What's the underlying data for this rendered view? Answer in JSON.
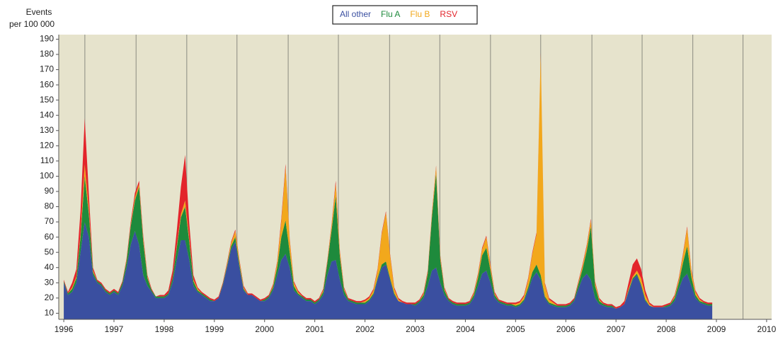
{
  "chart_data": {
    "type": "stacked_area",
    "y_label": [
      "Events",
      "per 100 000"
    ],
    "legend": "top",
    "background": "#e6e3cc",
    "xlim": [
      1995.9,
      2010.1
    ],
    "xticks": [
      1996,
      1997,
      1998,
      1999,
      2000,
      2001,
      2002,
      2003,
      2004,
      2005,
      2006,
      2007,
      2008,
      2009,
      2010
    ],
    "xgrid": [
      1996.42,
      1997.44,
      1998.45,
      1999.45,
      2000.47,
      2001.47,
      2002.49,
      2003.49,
      2004.5,
      2005.5,
      2006.52,
      2007.52,
      2008.53,
      2009.53
    ],
    "ylim": [
      6,
      193
    ],
    "yticks": [
      10,
      20,
      30,
      40,
      50,
      60,
      70,
      80,
      90,
      100,
      110,
      120,
      130,
      140,
      150,
      160,
      170,
      180,
      190
    ],
    "x": [
      1996.0,
      1996.083,
      1996.167,
      1996.25,
      1996.333,
      1996.417,
      1996.5,
      1996.583,
      1996.667,
      1996.75,
      1996.833,
      1996.917,
      1997.0,
      1997.083,
      1997.167,
      1997.25,
      1997.333,
      1997.417,
      1997.5,
      1997.583,
      1997.667,
      1997.75,
      1997.833,
      1997.917,
      1998.0,
      1998.083,
      1998.167,
      1998.25,
      1998.333,
      1998.417,
      1998.5,
      1998.583,
      1998.667,
      1998.75,
      1998.833,
      1998.917,
      1999.0,
      1999.083,
      1999.167,
      1999.25,
      1999.333,
      1999.417,
      1999.5,
      1999.583,
      1999.667,
      1999.75,
      1999.833,
      1999.917,
      2000.0,
      2000.083,
      2000.167,
      2000.25,
      2000.333,
      2000.417,
      2000.5,
      2000.583,
      2000.667,
      2000.75,
      2000.833,
      2000.917,
      2001.0,
      2001.083,
      2001.167,
      2001.25,
      2001.333,
      2001.417,
      2001.5,
      2001.583,
      2001.667,
      2001.75,
      2001.833,
      2001.917,
      2002.0,
      2002.083,
      2002.167,
      2002.25,
      2002.333,
      2002.417,
      2002.5,
      2002.583,
      2002.667,
      2002.75,
      2002.833,
      2002.917,
      2003.0,
      2003.083,
      2003.167,
      2003.25,
      2003.333,
      2003.417,
      2003.5,
      2003.583,
      2003.667,
      2003.75,
      2003.833,
      2003.917,
      2004.0,
      2004.083,
      2004.167,
      2004.25,
      2004.333,
      2004.417,
      2004.5,
      2004.583,
      2004.667,
      2004.75,
      2004.833,
      2004.917,
      2005.0,
      2005.083,
      2005.167,
      2005.25,
      2005.333,
      2005.417,
      2005.5,
      2005.583,
      2005.667,
      2005.75,
      2005.833,
      2005.917,
      2006.0,
      2006.083,
      2006.167,
      2006.25,
      2006.333,
      2006.417,
      2006.5,
      2006.583,
      2006.667,
      2006.75,
      2006.833,
      2006.917,
      2007.0,
      2007.083,
      2007.167,
      2007.25,
      2007.333,
      2007.417,
      2007.5,
      2007.583,
      2007.667,
      2007.75,
      2007.833,
      2007.917,
      2008.0,
      2008.083,
      2008.167,
      2008.25,
      2008.333,
      2008.417,
      2008.5,
      2008.583,
      2008.667,
      2008.75,
      2008.833,
      2008.917
    ],
    "series": [
      {
        "name": "All other",
        "color": "#3a4fa0",
        "values": [
          30,
          22,
          24,
          30,
          50,
          70,
          60,
          35,
          30,
          28,
          24,
          22,
          24,
          22,
          28,
          40,
          55,
          64,
          55,
          35,
          28,
          24,
          20,
          20,
          20,
          22,
          30,
          45,
          58,
          58,
          45,
          28,
          24,
          22,
          20,
          18,
          18,
          20,
          28,
          40,
          52,
          57,
          40,
          25,
          22,
          22,
          20,
          18,
          18,
          20,
          25,
          35,
          45,
          49,
          40,
          25,
          22,
          20,
          18,
          18,
          16,
          18,
          22,
          35,
          44,
          45,
          32,
          22,
          18,
          17,
          16,
          16,
          16,
          18,
          22,
          32,
          40,
          42,
          32,
          22,
          18,
          17,
          16,
          16,
          15,
          17,
          20,
          28,
          38,
          40,
          30,
          22,
          18,
          16,
          15,
          15,
          15,
          16,
          20,
          28,
          36,
          38,
          30,
          20,
          17,
          16,
          15,
          15,
          14,
          15,
          18,
          25,
          33,
          37,
          32,
          20,
          16,
          15,
          14,
          14,
          14,
          15,
          18,
          26,
          33,
          36,
          32,
          20,
          16,
          15,
          14,
          14,
          13,
          14,
          16,
          24,
          32,
          35,
          28,
          18,
          15,
          14,
          14,
          14,
          14,
          15,
          18,
          26,
          33,
          36,
          28,
          20,
          17,
          16,
          15,
          15
        ]
      },
      {
        "name": "Flu A",
        "color": "#1e8a3c",
        "values": [
          1,
          1,
          2,
          3,
          10,
          30,
          15,
          2,
          1,
          1,
          1,
          1,
          1,
          1,
          2,
          4,
          12,
          20,
          38,
          22,
          5,
          1,
          1,
          1,
          1,
          1,
          3,
          8,
          15,
          22,
          12,
          3,
          1,
          1,
          1,
          1,
          0,
          0,
          1,
          1,
          2,
          3,
          2,
          1,
          0,
          0,
          0,
          0,
          1,
          1,
          2,
          5,
          15,
          22,
          10,
          3,
          1,
          1,
          1,
          1,
          1,
          1,
          2,
          8,
          20,
          42,
          15,
          3,
          1,
          1,
          1,
          1,
          1,
          1,
          1,
          1,
          2,
          2,
          1,
          1,
          0,
          0,
          0,
          0,
          1,
          1,
          2,
          8,
          35,
          62,
          15,
          3,
          1,
          1,
          1,
          1,
          1,
          1,
          2,
          5,
          12,
          15,
          8,
          2,
          1,
          1,
          1,
          1,
          1,
          1,
          1,
          2,
          4,
          5,
          3,
          1,
          1,
          1,
          1,
          1,
          1,
          1,
          1,
          3,
          6,
          15,
          35,
          8,
          2,
          1,
          1,
          1,
          0,
          0,
          0,
          1,
          1,
          1,
          1,
          1,
          0,
          0,
          0,
          0,
          1,
          1,
          2,
          4,
          10,
          18,
          6,
          2,
          1,
          1,
          1,
          1
        ]
      },
      {
        "name": "Flu B",
        "color": "#f2a81c",
        "values": [
          0,
          0,
          1,
          1,
          2,
          8,
          3,
          1,
          0,
          0,
          0,
          0,
          0,
          0,
          0,
          1,
          1,
          2,
          2,
          2,
          1,
          0,
          0,
          0,
          0,
          0,
          0,
          1,
          2,
          4,
          2,
          1,
          1,
          0,
          0,
          0,
          0,
          0,
          0,
          1,
          2,
          4,
          2,
          1,
          0,
          0,
          0,
          0,
          0,
          0,
          1,
          3,
          10,
          35,
          8,
          2,
          1,
          0,
          0,
          0,
          0,
          0,
          1,
          1,
          3,
          8,
          3,
          1,
          0,
          0,
          0,
          0,
          1,
          1,
          2,
          5,
          20,
          32,
          15,
          3,
          1,
          0,
          0,
          0,
          0,
          0,
          1,
          1,
          2,
          4,
          2,
          1,
          0,
          0,
          0,
          0,
          0,
          0,
          1,
          2,
          4,
          7,
          3,
          1,
          0,
          0,
          0,
          0,
          1,
          1,
          2,
          5,
          12,
          20,
          145,
          8,
          2,
          1,
          0,
          0,
          0,
          0,
          0,
          1,
          2,
          3,
          4,
          2,
          1,
          0,
          0,
          0,
          0,
          0,
          0,
          1,
          1,
          2,
          4,
          3,
          1,
          0,
          0,
          0,
          0,
          0,
          1,
          2,
          5,
          12,
          4,
          2,
          1,
          0,
          0,
          0
        ]
      },
      {
        "name": "RSV",
        "color": "#e3242b",
        "values": [
          1,
          1,
          3,
          5,
          15,
          30,
          10,
          2,
          1,
          1,
          1,
          1,
          1,
          1,
          1,
          1,
          2,
          3,
          2,
          2,
          1,
          1,
          0,
          1,
          1,
          2,
          5,
          10,
          18,
          30,
          10,
          3,
          1,
          1,
          1,
          1,
          1,
          1,
          1,
          1,
          1,
          1,
          1,
          1,
          1,
          1,
          1,
          1,
          1,
          1,
          1,
          1,
          2,
          2,
          1,
          1,
          1,
          1,
          1,
          1,
          1,
          1,
          1,
          1,
          1,
          2,
          1,
          1,
          1,
          1,
          1,
          1,
          1,
          1,
          1,
          1,
          1,
          1,
          1,
          1,
          1,
          1,
          1,
          1,
          1,
          1,
          1,
          1,
          1,
          1,
          1,
          1,
          1,
          1,
          1,
          1,
          1,
          1,
          1,
          1,
          1,
          1,
          1,
          1,
          1,
          1,
          1,
          1,
          1,
          1,
          1,
          1,
          1,
          1,
          1,
          1,
          1,
          1,
          1,
          1,
          1,
          1,
          1,
          1,
          1,
          1,
          1,
          1,
          1,
          1,
          1,
          1,
          1,
          1,
          2,
          4,
          8,
          8,
          6,
          3,
          1,
          1,
          1,
          1,
          1,
          1,
          1,
          1,
          1,
          1,
          1,
          1,
          1,
          1,
          1,
          1
        ]
      }
    ]
  }
}
